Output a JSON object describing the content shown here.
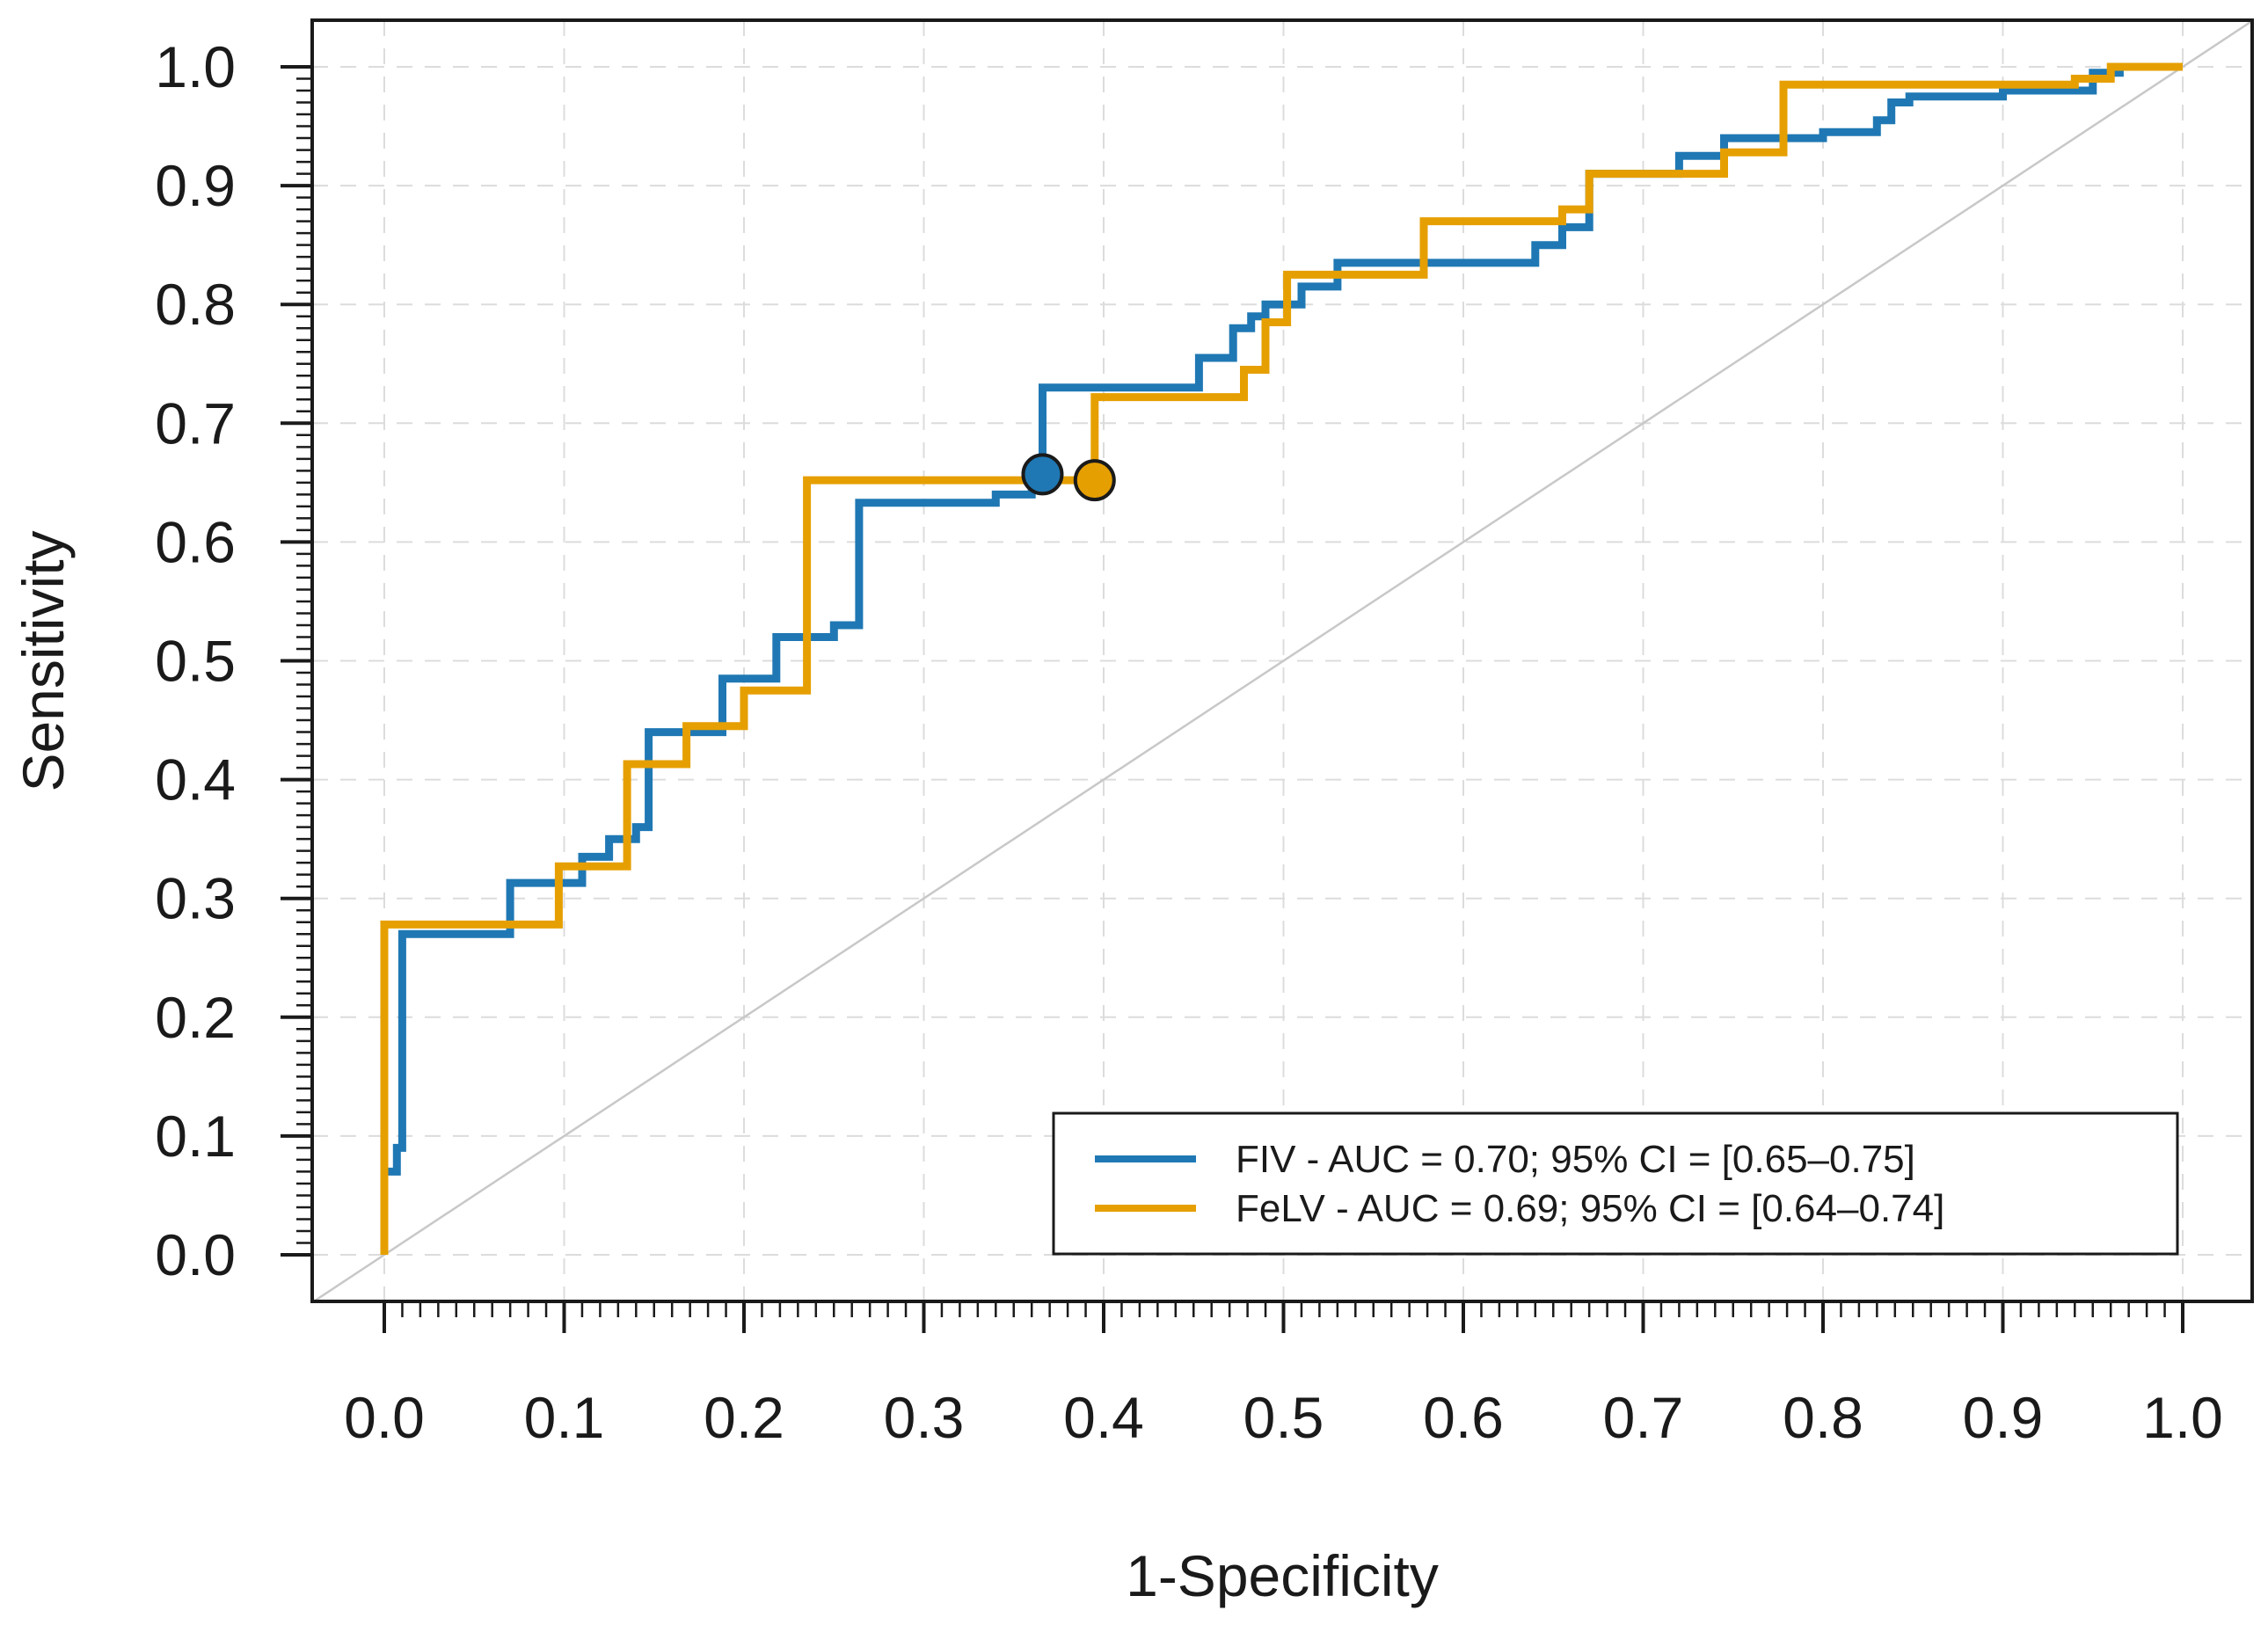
{
  "chart_data": {
    "type": "line",
    "title": "",
    "xlabel": "1-Specificity",
    "ylabel": "Sensitivity",
    "xlim": [
      0,
      1
    ],
    "ylim": [
      0,
      1
    ],
    "x_ticks": [
      "0.0",
      "0.1",
      "0.2",
      "0.3",
      "0.4",
      "0.5",
      "0.6",
      "0.7",
      "0.8",
      "0.9",
      "1.0"
    ],
    "y_ticks": [
      "0.0",
      "0.1",
      "0.2",
      "0.3",
      "0.4",
      "0.5",
      "0.6",
      "0.7",
      "0.8",
      "0.9",
      "1.0"
    ],
    "grid": true,
    "legend_position": "bottom-right",
    "reference_line": {
      "from": [
        0,
        0
      ],
      "to": [
        1,
        1
      ],
      "color": "#c8c8c8"
    },
    "series": [
      {
        "name": "FIV - AUC = 0.70; 95% CI = [0.65–0.75]",
        "color": "#1f78b4",
        "cutoff_point": [
          0.366,
          0.657
        ],
        "points": [
          [
            0,
            0
          ],
          [
            0,
            0.07
          ],
          [
            0.007,
            0.07
          ],
          [
            0.007,
            0.09
          ],
          [
            0.01,
            0.09
          ],
          [
            0.01,
            0.27
          ],
          [
            0.07,
            0.27
          ],
          [
            0.07,
            0.313
          ],
          [
            0.11,
            0.313
          ],
          [
            0.11,
            0.335
          ],
          [
            0.125,
            0.335
          ],
          [
            0.125,
            0.35
          ],
          [
            0.14,
            0.35
          ],
          [
            0.14,
            0.36
          ],
          [
            0.147,
            0.36
          ],
          [
            0.147,
            0.44
          ],
          [
            0.188,
            0.44
          ],
          [
            0.188,
            0.485
          ],
          [
            0.218,
            0.485
          ],
          [
            0.218,
            0.52
          ],
          [
            0.25,
            0.52
          ],
          [
            0.25,
            0.53
          ],
          [
            0.264,
            0.53
          ],
          [
            0.264,
            0.633
          ],
          [
            0.34,
            0.633
          ],
          [
            0.34,
            0.64
          ],
          [
            0.36,
            0.64
          ],
          [
            0.36,
            0.657
          ],
          [
            0.366,
            0.657
          ],
          [
            0.366,
            0.73
          ],
          [
            0.453,
            0.73
          ],
          [
            0.453,
            0.755
          ],
          [
            0.472,
            0.755
          ],
          [
            0.472,
            0.78
          ],
          [
            0.482,
            0.78
          ],
          [
            0.482,
            0.79
          ],
          [
            0.49,
            0.79
          ],
          [
            0.49,
            0.8
          ],
          [
            0.51,
            0.8
          ],
          [
            0.51,
            0.815
          ],
          [
            0.53,
            0.815
          ],
          [
            0.53,
            0.835
          ],
          [
            0.64,
            0.835
          ],
          [
            0.64,
            0.85
          ],
          [
            0.655,
            0.85
          ],
          [
            0.655,
            0.865
          ],
          [
            0.67,
            0.865
          ],
          [
            0.67,
            0.91
          ],
          [
            0.72,
            0.91
          ],
          [
            0.72,
            0.925
          ],
          [
            0.745,
            0.925
          ],
          [
            0.745,
            0.94
          ],
          [
            0.8,
            0.94
          ],
          [
            0.8,
            0.945
          ],
          [
            0.83,
            0.945
          ],
          [
            0.83,
            0.955
          ],
          [
            0.838,
            0.955
          ],
          [
            0.838,
            0.97
          ],
          [
            0.848,
            0.97
          ],
          [
            0.848,
            0.975
          ],
          [
            0.9,
            0.975
          ],
          [
            0.9,
            0.98
          ],
          [
            0.95,
            0.98
          ],
          [
            0.95,
            0.995
          ],
          [
            0.965,
            0.995
          ],
          [
            0.965,
            1.0
          ],
          [
            1.0,
            1.0
          ]
        ]
      },
      {
        "name": "FeLV - AUC = 0.69; 95% CI = [0.64–0.74]",
        "color": "#e69f00",
        "cutoff_point": [
          0.395,
          0.652
        ],
        "points": [
          [
            0,
            0
          ],
          [
            0,
            0.278
          ],
          [
            0.097,
            0.278
          ],
          [
            0.097,
            0.327
          ],
          [
            0.135,
            0.327
          ],
          [
            0.135,
            0.413
          ],
          [
            0.168,
            0.413
          ],
          [
            0.168,
            0.445
          ],
          [
            0.2,
            0.445
          ],
          [
            0.2,
            0.475
          ],
          [
            0.235,
            0.475
          ],
          [
            0.235,
            0.652
          ],
          [
            0.395,
            0.652
          ],
          [
            0.395,
            0.722
          ],
          [
            0.478,
            0.722
          ],
          [
            0.478,
            0.745
          ],
          [
            0.49,
            0.745
          ],
          [
            0.49,
            0.785
          ],
          [
            0.502,
            0.785
          ],
          [
            0.502,
            0.825
          ],
          [
            0.578,
            0.825
          ],
          [
            0.578,
            0.87
          ],
          [
            0.655,
            0.87
          ],
          [
            0.655,
            0.88
          ],
          [
            0.67,
            0.88
          ],
          [
            0.67,
            0.91
          ],
          [
            0.745,
            0.91
          ],
          [
            0.745,
            0.928
          ],
          [
            0.778,
            0.928
          ],
          [
            0.778,
            0.985
          ],
          [
            0.94,
            0.985
          ],
          [
            0.94,
            0.99
          ],
          [
            0.96,
            0.99
          ],
          [
            0.96,
            1.0
          ],
          [
            1.0,
            1.0
          ]
        ]
      }
    ]
  }
}
